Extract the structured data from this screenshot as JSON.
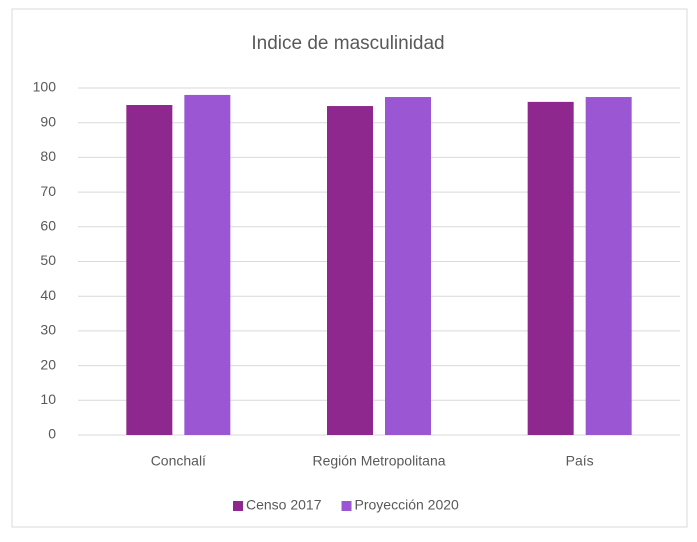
{
  "chart_data": {
    "type": "bar",
    "title": "Indice de masculinidad",
    "categories": [
      "Conchalí",
      "Región Metropolitana",
      "País"
    ],
    "series": [
      {
        "name": "Censo 2017",
        "color": "#8e278e",
        "values": [
          95.1,
          94.8,
          96.0
        ]
      },
      {
        "name": "Proyección 2020",
        "color": "#9b57d3",
        "values": [
          98.0,
          97.4,
          97.4
        ]
      }
    ],
    "ylim": [
      0,
      100
    ],
    "yticks": [
      0,
      10,
      20,
      30,
      40,
      50,
      60,
      70,
      80,
      90,
      100
    ],
    "grid": true,
    "legend": "bottom"
  }
}
